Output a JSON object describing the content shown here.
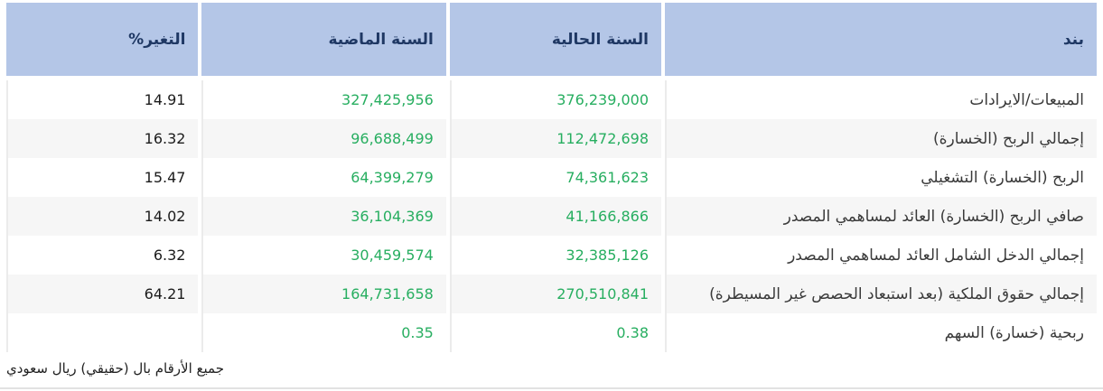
{
  "table": {
    "headers": {
      "item": "بند",
      "current_year": "السنة الحالية",
      "previous_year": "السنة الماضية",
      "change_pct": "التغير%"
    },
    "rows": [
      {
        "item": "المبيعات/الايرادات",
        "current": "376,239,000",
        "previous": "327,425,956",
        "change": "14.91"
      },
      {
        "item": "إجمالي الربح (الخسارة)",
        "current": "112,472,698",
        "previous": "96,688,499",
        "change": "16.32"
      },
      {
        "item": "الربح (الخسارة) التشغيلي",
        "current": "74,361,623",
        "previous": "64,399,279",
        "change": "15.47"
      },
      {
        "item": "صافي الربح (الخسارة) العائد لمساهمي المصدر",
        "current": "41,166,866",
        "previous": "36,104,369",
        "change": "14.02"
      },
      {
        "item": "إجمالي الدخل الشامل العائد لمساهمي المصدر",
        "current": "32,385,126",
        "previous": "30,459,574",
        "change": "6.32"
      },
      {
        "item": "إجمالي حقوق الملكية (بعد استبعاد الحصص غير المسيطرة)",
        "current": "270,510,841",
        "previous": "164,731,658",
        "change": "64.21"
      },
      {
        "item": "ربحية (خسارة) السهم",
        "current": "0.38",
        "previous": "0.35",
        "change": ""
      }
    ]
  },
  "footnote": "جميع الأرقام بال (حقيقي) ريال سعودي",
  "colors": {
    "header_bg": "#b4c6e7",
    "header_text": "#1f3864",
    "positive_value": "#27ae60",
    "row_stripe": "#f6f6f6"
  }
}
